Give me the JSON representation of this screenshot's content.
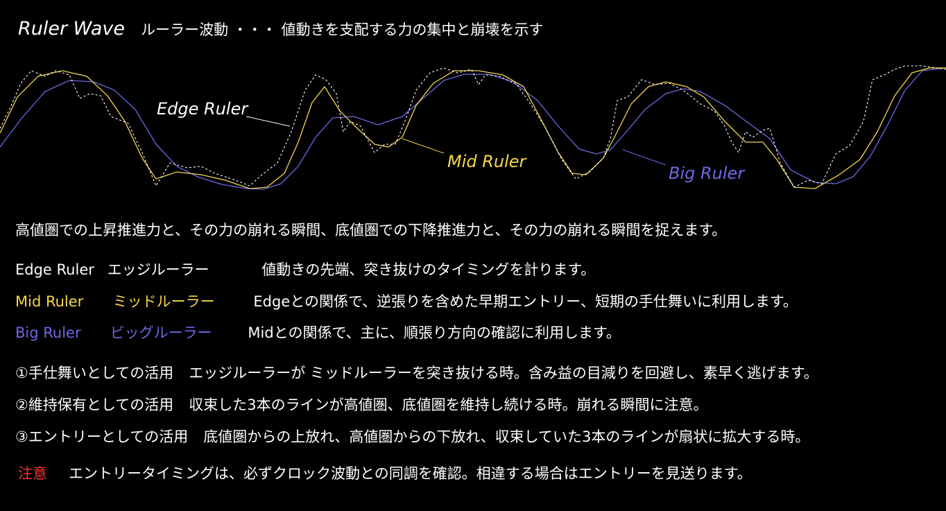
{
  "title": {
    "en": "Ruler Wave",
    "jp": "ルーラー波動 ・・・ 値動きを支配する力の集中と崩壊を示す"
  },
  "colors": {
    "background": "#000000",
    "text": "#ffffff",
    "edge": "#ffffff",
    "mid": "#f5d84a",
    "big": "#6e68e6",
    "warning": "#ff3030"
  },
  "diagram": {
    "labels": {
      "edge": "Edge Ruler",
      "mid": "Mid Ruler",
      "big": "Big Ruler"
    }
  },
  "intro": "高値圏での上昇推進力と、その力の崩れる瞬間、底値圏での下降推進力と、その力の崩れる瞬間を捉えます。",
  "rulers": [
    {
      "name": "Edge Ruler",
      "kana": "エッジルーラー",
      "desc": "値動きの先端、突き抜けのタイミングを計ります。"
    },
    {
      "name": "Mid Ruler",
      "kana": "ミッドルーラー",
      "desc": "Edgeとの関係で、逆張りを含めた早期エントリー、短期の手仕舞いに利用します。"
    },
    {
      "name": "Big Ruler",
      "kana": "ビッグルーラー",
      "desc": "Midとの関係で、主に、順張り方向の確認に利用します。"
    }
  ],
  "uses": [
    {
      "head": "①手仕舞いとしての活用",
      "body": "エッジルーラーが ミッドルーラーを突き抜ける時。含み益の目減りを回避し、素早く逃げます。"
    },
    {
      "head": "②維持保有としての活用",
      "body": "収束した3本のラインが高値圏、底値圏を維持し続ける時。崩れる瞬間に注意。"
    },
    {
      "head": "③エントリーとしての活用",
      "body": "底値圏からの上放れ、高値圏からの下放れ、収束していた3本のラインが扇状に拡大する時。"
    }
  ],
  "warning": {
    "head": "注意",
    "body": "エントリータイミングは、必ずクロック波動との同調を確認。相違する場合はエントリーを見送ります。"
  }
}
